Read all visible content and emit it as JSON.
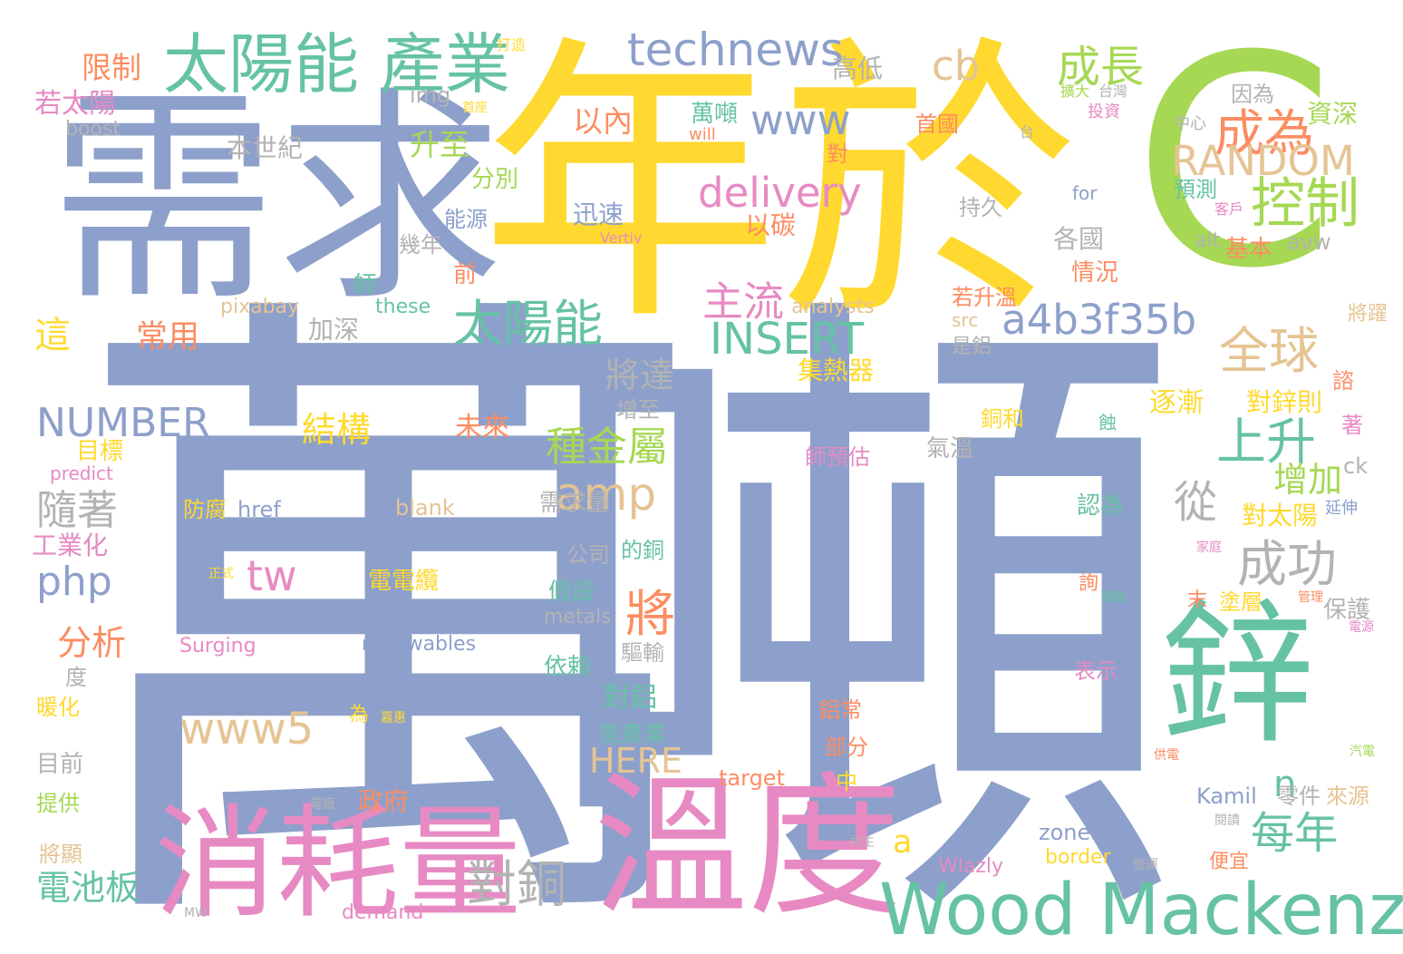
{
  "palette": {
    "blue": "#8da0cb",
    "yellow": "#ffd92f",
    "green": "#a6d854",
    "teal": "#66c2a5",
    "pink": "#e78ac3",
    "orange": "#fc8d62",
    "tan": "#e5c494",
    "gray": "#b3b3b3"
  },
  "words": [
    {
      "text": "萬"
    },
    {
      "text": "噸"
    },
    {
      "text": "年於"
    },
    {
      "text": "C"
    },
    {
      "text": "需求"
    },
    {
      "text": "溫度"
    },
    {
      "text": "消耗量"
    },
    {
      "text": "鋅"
    },
    {
      "text": "Wood Mackenzie"
    },
    {
      "text": "太陽能 產業"
    },
    {
      "text": "technews"
    },
    {
      "text": "cb"
    },
    {
      "text": "成長"
    },
    {
      "text": "控制"
    },
    {
      "text": "成為"
    },
    {
      "text": "RANDOM"
    },
    {
      "text": "www"
    },
    {
      "text": "delivery"
    },
    {
      "text": "太陽能"
    },
    {
      "text": "主流"
    },
    {
      "text": "INSERT"
    },
    {
      "text": "a4b3f35b"
    },
    {
      "text": "全球"
    },
    {
      "text": "上升"
    },
    {
      "text": "NUMBER"
    },
    {
      "text": "種金屬"
    },
    {
      "text": "amp"
    },
    {
      "text": "隨著"
    },
    {
      "text": "php"
    },
    {
      "text": "tw"
    },
    {
      "text": "將"
    },
    {
      "text": "成功"
    },
    {
      "text": "從"
    },
    {
      "text": "增加"
    },
    {
      "text": "www5"
    },
    {
      "text": "HERE"
    },
    {
      "text": "對銅"
    },
    {
      "text": "每年"
    },
    {
      "text": "電池板"
    },
    {
      "text": "a"
    },
    {
      "text": "n"
    },
    {
      "text": "限制"
    },
    {
      "text": "若太陽"
    },
    {
      "text": "boost"
    },
    {
      "text": "本世紀"
    },
    {
      "text": "這"
    },
    {
      "text": "常用"
    },
    {
      "text": "加深"
    },
    {
      "text": "以內"
    },
    {
      "text": "升至"
    },
    {
      "text": "分別"
    },
    {
      "text": "能源"
    },
    {
      "text": "幾年"
    },
    {
      "text": "前"
    },
    {
      "text": "img"
    },
    {
      "text": "迅速"
    },
    {
      "text": "以碳"
    },
    {
      "text": "Vertiv"
    },
    {
      "text": "萬噸"
    },
    {
      "text": "will"
    },
    {
      "text": "高低"
    },
    {
      "text": "對"
    },
    {
      "text": "持久"
    },
    {
      "text": "首國"
    },
    {
      "text": "投資"
    },
    {
      "text": "台"
    },
    {
      "text": "for"
    },
    {
      "text": "中心"
    },
    {
      "text": "因為"
    },
    {
      "text": "資深"
    },
    {
      "text": "預測"
    },
    {
      "text": "客戶"
    },
    {
      "text": "基本"
    },
    {
      "text": "avw"
    },
    {
      "text": "alt"
    },
    {
      "text": "各國"
    },
    {
      "text": "情況"
    },
    {
      "text": "若升溫"
    },
    {
      "text": "src"
    },
    {
      "text": "是鋁"
    },
    {
      "text": "將躍"
    },
    {
      "text": "analysts"
    },
    {
      "text": "these"
    },
    {
      "text": "pixabay"
    },
    {
      "text": "師"
    },
    {
      "text": "集熱器"
    },
    {
      "text": "將達"
    },
    {
      "text": "增至"
    },
    {
      "text": "結構"
    },
    {
      "text": "未來"
    },
    {
      "text": "目標"
    },
    {
      "text": "predict"
    },
    {
      "text": "銅和"
    },
    {
      "text": "氣溫"
    },
    {
      "text": "逐漸"
    },
    {
      "text": "對鋅則"
    },
    {
      "text": "諮"
    },
    {
      "text": "著"
    },
    {
      "text": "蝕"
    },
    {
      "text": "師預估"
    },
    {
      "text": "ck"
    },
    {
      "text": "延伸"
    },
    {
      "text": "對太陽"
    },
    {
      "text": "認為"
    },
    {
      "text": "防腐"
    },
    {
      "text": "href"
    },
    {
      "text": "blank"
    },
    {
      "text": "工業化"
    },
    {
      "text": "需求量"
    },
    {
      "text": "公司"
    },
    {
      "text": "的銅"
    },
    {
      "text": "家庭"
    },
    {
      "text": "正式"
    },
    {
      "text": "電電纜"
    },
    {
      "text": "詢"
    },
    {
      "text": "體驗"
    },
    {
      "text": "管理"
    },
    {
      "text": "末"
    },
    {
      "text": "塗層"
    },
    {
      "text": "保護"
    },
    {
      "text": "電源"
    },
    {
      "text": "分析"
    },
    {
      "text": "Surging"
    },
    {
      "text": "假設"
    },
    {
      "text": "metals"
    },
    {
      "text": "renewables"
    },
    {
      "text": "驅輸"
    },
    {
      "text": "依賴"
    },
    {
      "text": "表示"
    },
    {
      "text": "度"
    },
    {
      "text": "暖化"
    },
    {
      "text": "為"
    },
    {
      "text": "嘉惠"
    },
    {
      "text": "對鋁"
    },
    {
      "text": "鋁常"
    },
    {
      "text": "能產業"
    },
    {
      "text": "目前"
    },
    {
      "text": "部分"
    },
    {
      "text": "提供"
    },
    {
      "text": "電廠"
    },
    {
      "text": "政府"
    },
    {
      "text": "target"
    },
    {
      "text": "中"
    },
    {
      "text": "供電"
    },
    {
      "text": "汽電"
    },
    {
      "text": "Kamil"
    },
    {
      "text": "零件"
    },
    {
      "text": "來源"
    },
    {
      "text": "閱讀"
    },
    {
      "text": "將顯"
    },
    {
      "text": "共生"
    },
    {
      "text": "zoneid"
    },
    {
      "text": "border"
    },
    {
      "text": "營運"
    },
    {
      "text": "便宜"
    },
    {
      "text": "Wlazly"
    },
    {
      "text": "MW"
    },
    {
      "text": "demand"
    },
    {
      "text": "打造"
    },
    {
      "text": "首座"
    },
    {
      "text": "擴大"
    },
    {
      "text": "台灣"
    }
  ]
}
